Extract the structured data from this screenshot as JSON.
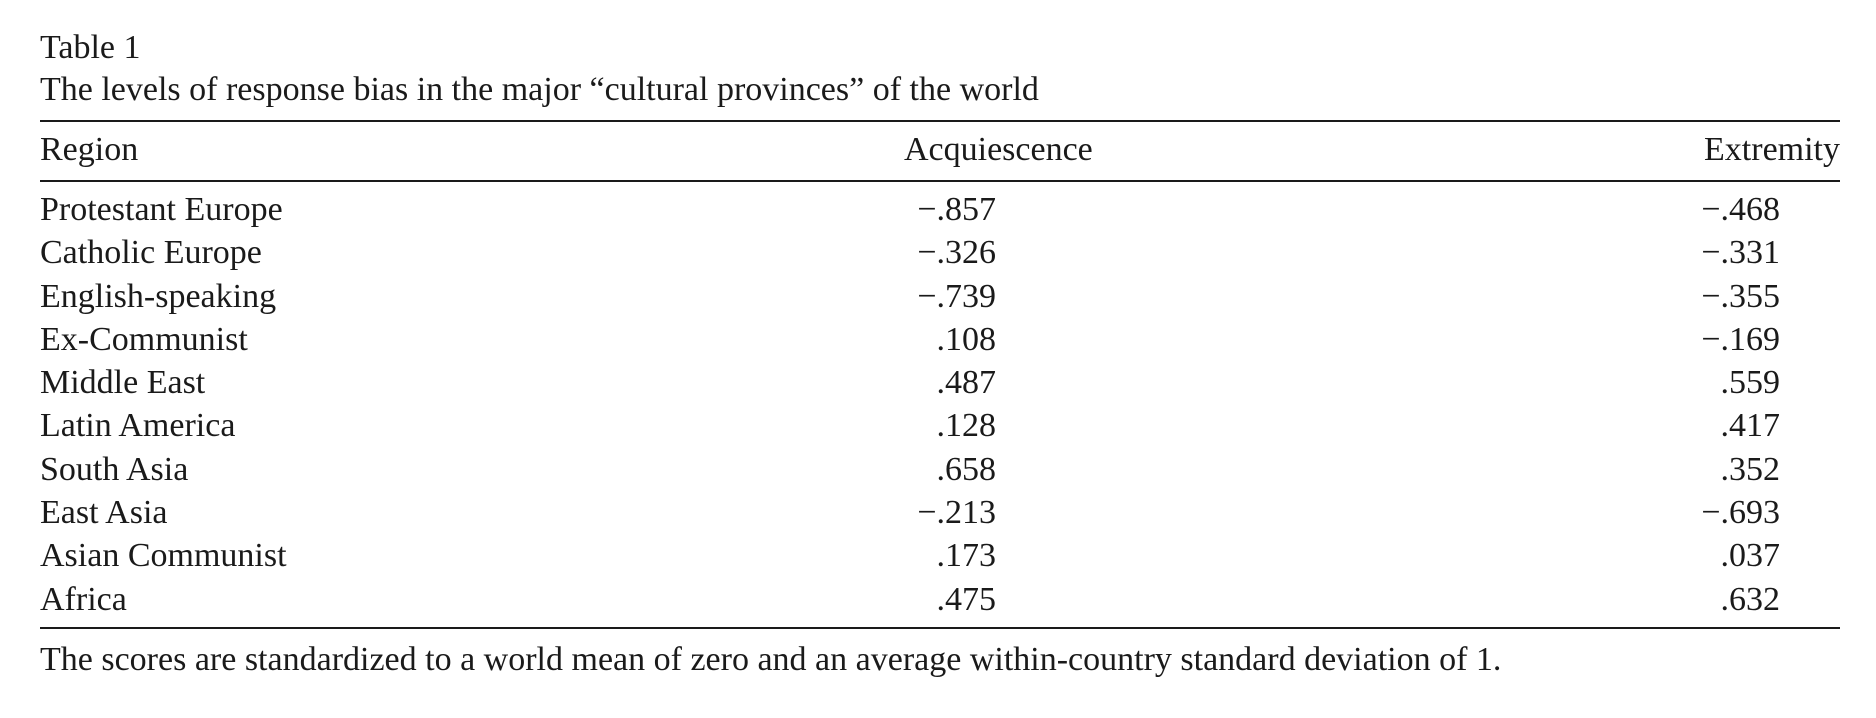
{
  "table": {
    "label": "Table 1",
    "caption": "The levels of response bias in the major “cultural provinces” of the world",
    "headers": {
      "region": "Region",
      "acquiescence": "Acquiescence",
      "extremity": "Extremity"
    },
    "rows": [
      {
        "region": "Protestant Europe",
        "acquiescence": "−.857",
        "extremity": "−.468"
      },
      {
        "region": "Catholic Europe",
        "acquiescence": "−.326",
        "extremity": "−.331"
      },
      {
        "region": "English-speaking",
        "acquiescence": "−.739",
        "extremity": "−.355"
      },
      {
        "region": "Ex-Communist",
        "acquiescence": ".108",
        "extremity": "−.169"
      },
      {
        "region": "Middle East",
        "acquiescence": ".487",
        "extremity": ".559"
      },
      {
        "region": "Latin America",
        "acquiescence": ".128",
        "extremity": ".417"
      },
      {
        "region": "South Asia",
        "acquiescence": ".658",
        "extremity": ".352"
      },
      {
        "region": "East Asia",
        "acquiescence": "−.213",
        "extremity": "−.693"
      },
      {
        "region": "Asian Communist",
        "acquiescence": ".173",
        "extremity": ".037"
      },
      {
        "region": "Africa",
        "acquiescence": ".475",
        "extremity": ".632"
      }
    ],
    "footnote": "The scores are standardized to a world mean of zero and an average within-country standard deviation of 1."
  }
}
